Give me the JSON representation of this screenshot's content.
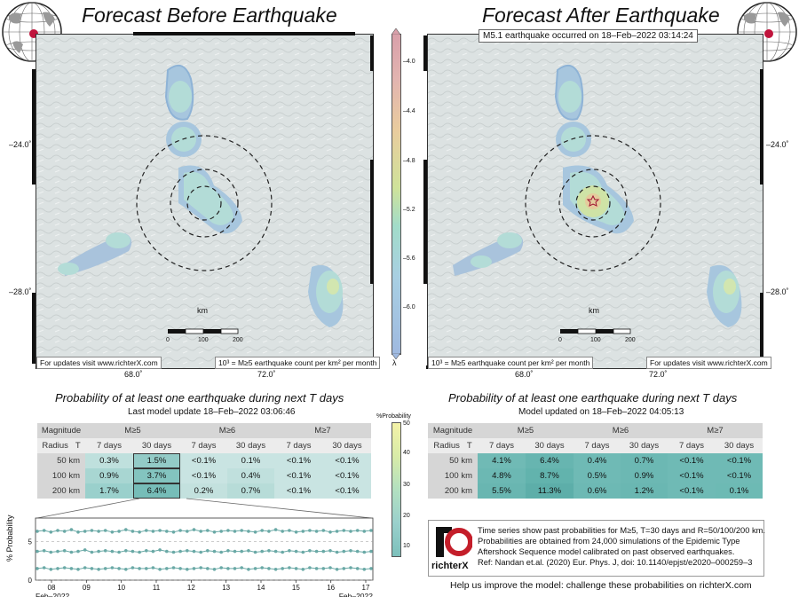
{
  "titles": {
    "before": "Forecast Before Earthquake",
    "after": "Forecast After Earthquake"
  },
  "event_label": "M5.1 earthquake occurred on 18–Feb–2022 03:14:24",
  "map_labels": {
    "lat_top": "–24.0˚",
    "lat_bottom": "–28.0˚",
    "lon_left": "68.0˚",
    "lon_right": "72.0˚",
    "scale_unit": "km",
    "scale_ticks": [
      "0",
      "100",
      "200"
    ],
    "update_note": "For updates visit www.richterX.com",
    "legend_note": "10³ = M≥5 earthquake count per km² per month"
  },
  "colorbar": {
    "ticks": [
      "–4.0",
      "–4.4",
      "–4.8",
      "–5.2",
      "–5.6",
      "–6.0"
    ],
    "symbol": "λ"
  },
  "prob_titles": {
    "left": "Probability of at least one earthquake during next T days",
    "right": "Probability of at least one earthquake during next T days",
    "left_update": "Last model update 18–Feb–2022 03:06:46",
    "right_update": "Model updated on 18–Feb–2022 04:05:13"
  },
  "table_headers": {
    "magnitude": "Magnitude",
    "radius": "Radius",
    "t": "T",
    "m5": "M≥5",
    "m6": "M≥6",
    "m7": "M≥7",
    "d7": "7 days",
    "d30": "30 days",
    "rows": [
      "50 km",
      "100 km",
      "200 km"
    ]
  },
  "table_before": [
    [
      "0.3%",
      "1.5%",
      "<0.1%",
      "0.1%",
      "<0.1%",
      "<0.1%"
    ],
    [
      "0.9%",
      "3.7%",
      "<0.1%",
      "0.4%",
      "<0.1%",
      "<0.1%"
    ],
    [
      "1.7%",
      "6.4%",
      "0.2%",
      "0.7%",
      "<0.1%",
      "<0.1%"
    ]
  ],
  "table_after": [
    [
      "4.1%",
      "6.4%",
      "0.4%",
      "0.7%",
      "<0.1%",
      "<0.1%"
    ],
    [
      "4.8%",
      "8.7%",
      "0.5%",
      "0.9%",
      "<0.1%",
      "<0.1%"
    ],
    [
      "5.5%",
      "11.3%",
      "0.6%",
      "1.2%",
      "<0.1%",
      "0.1%"
    ]
  ],
  "pct_bar": {
    "title": "%Probability",
    "ticks": [
      "50",
      "40",
      "30",
      "20",
      "10"
    ]
  },
  "chart_data": {
    "type": "line",
    "title": "",
    "ylabel": "% Probability",
    "ylim": [
      0,
      8
    ],
    "y_ticks": [
      0,
      5
    ],
    "x_ticks": [
      "08",
      "09",
      "10",
      "11",
      "12",
      "13",
      "14",
      "15",
      "16",
      "17"
    ],
    "x_start_label": "Feb–2022",
    "x_end_label": "Feb–2022",
    "series": [
      {
        "name": "R=200 km",
        "values": [
          6.3,
          6.4,
          6.2,
          6.4,
          6.3,
          6.5,
          6.2,
          6.3,
          6.4,
          6.3,
          6.4,
          6.2,
          6.3,
          6.5,
          6.3,
          6.2,
          6.4,
          6.3,
          6.4,
          6.3,
          6.2,
          6.4,
          6.3,
          6.5,
          6.3,
          6.4,
          6.2,
          6.3,
          6.4,
          6.3,
          6.4,
          6.3,
          6.2,
          6.4,
          6.3,
          6.5,
          6.3,
          6.4,
          6.2,
          6.3,
          6.4,
          6.3,
          6.4,
          6.2,
          6.3,
          6.4,
          6.3,
          6.4,
          6.3,
          6.4
        ]
      },
      {
        "name": "R=100 km",
        "values": [
          3.7,
          3.8,
          3.6,
          3.7,
          3.8,
          3.6,
          3.7,
          3.9,
          3.6,
          3.7,
          3.8,
          3.7,
          3.6,
          3.8,
          3.7,
          3.6,
          3.8,
          3.7,
          3.9,
          3.7,
          3.6,
          3.7,
          3.8,
          3.7,
          3.6,
          3.8,
          3.7,
          3.6,
          3.8,
          3.7,
          3.7,
          3.8,
          3.6,
          3.7,
          3.8,
          3.7,
          3.6,
          3.8,
          3.7,
          3.6,
          3.8,
          3.7,
          3.7,
          3.8,
          3.6,
          3.7,
          3.8,
          3.7,
          3.6,
          3.7
        ]
      },
      {
        "name": "R=50 km",
        "values": [
          1.5,
          1.6,
          1.4,
          1.5,
          1.6,
          1.5,
          1.4,
          1.6,
          1.5,
          1.4,
          1.5,
          1.6,
          1.5,
          1.4,
          1.6,
          1.5,
          1.5,
          1.6,
          1.4,
          1.5,
          1.6,
          1.5,
          1.4,
          1.5,
          1.6,
          1.5,
          1.4,
          1.6,
          1.5,
          1.5,
          1.6,
          1.4,
          1.5,
          1.6,
          1.5,
          1.4,
          1.5,
          1.6,
          1.5,
          1.4,
          1.6,
          1.5,
          1.5,
          1.6,
          1.4,
          1.5,
          1.6,
          1.5,
          1.4,
          1.5
        ]
      }
    ]
  },
  "info": {
    "lines": [
      "Time series show past probabilities for M≥5, T=30 days and R=50/100/200 km.",
      "Probabilities are obtained from 24,000 simulations of the Epidemic Type",
      "Aftershock Sequence model calibrated on past observed earthquakes.",
      "Ref: Nandan et.al. (2020) Eur. Phys. J, doi: 10.1140/epjst/e2020–000259–3"
    ],
    "brand": "richterX",
    "help": "Help us improve the model: challenge these probabilities on richterX.com"
  },
  "colors": {
    "teal_dark": "#6fbcb8",
    "teal_mid": "#94cdc8",
    "teal_light": "#c1dfdc",
    "series_line": "#6aa9a6"
  }
}
